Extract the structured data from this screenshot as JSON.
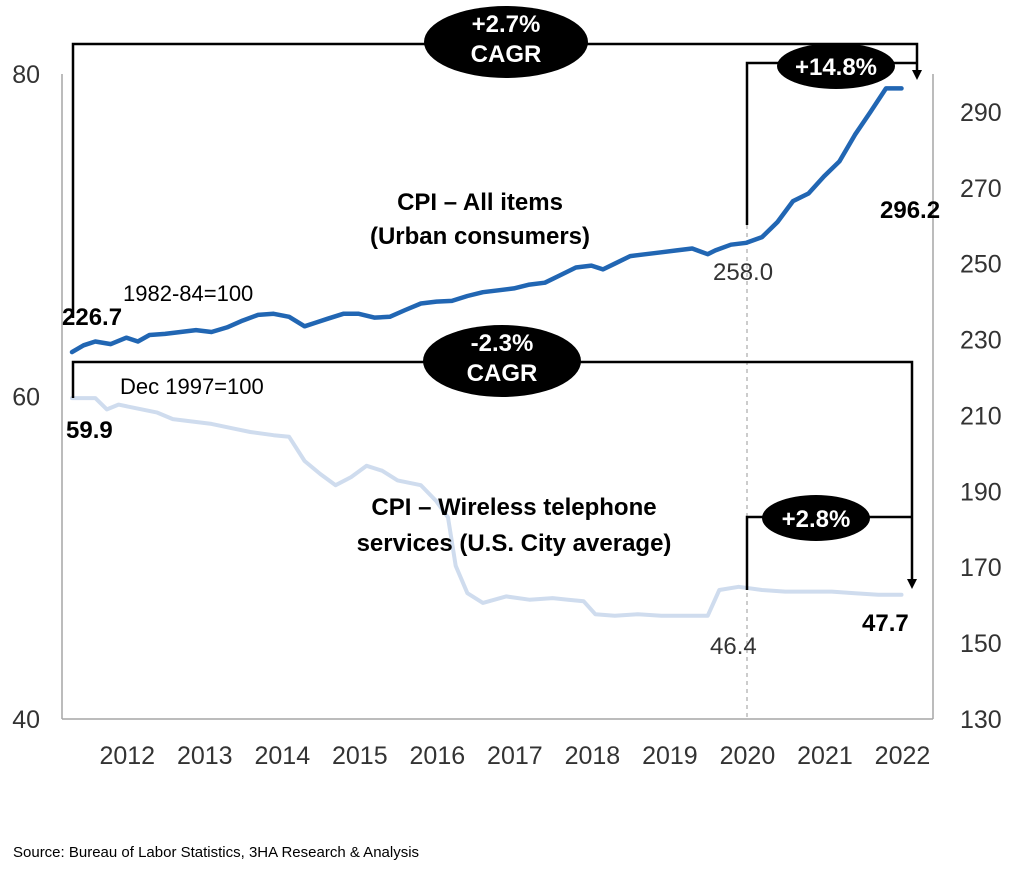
{
  "chart_data": {
    "type": "line",
    "source": "Source: Bureau of Labor Statistics, 3HA Research & Analysis",
    "x_axis": {
      "ticks": [
        "2012",
        "2013",
        "2014",
        "2015",
        "2016",
        "2017",
        "2018",
        "2019",
        "2020",
        "2021",
        "2022"
      ],
      "range": [
        2011.7,
        2022.6
      ]
    },
    "y_left": {
      "ticks": [
        "40",
        "60",
        "80"
      ],
      "range": [
        40,
        80
      ]
    },
    "y_right": {
      "ticks": [
        "130",
        "150",
        "170",
        "190",
        "210",
        "230",
        "250",
        "270",
        "290"
      ],
      "range": [
        130,
        300
      ]
    },
    "series": [
      {
        "name": "CPI – All items (Urban consumers)",
        "label_line1": "CPI – All items",
        "label_line2": "(Urban consumers)",
        "base": "1982-84=100",
        "axis": "right",
        "color": "#2166b3",
        "start_label": "226.7",
        "mid_label": "258.0",
        "end_label": "296.2",
        "points": [
          [
            2011.7,
            226.7
          ],
          [
            2011.85,
            228.5
          ],
          [
            2012.0,
            229.5
          ],
          [
            2012.2,
            228.8
          ],
          [
            2012.4,
            230.5
          ],
          [
            2012.55,
            229.5
          ],
          [
            2012.7,
            231.2
          ],
          [
            2012.9,
            231.5
          ],
          [
            2013.1,
            232.0
          ],
          [
            2013.3,
            232.5
          ],
          [
            2013.5,
            232.0
          ],
          [
            2013.7,
            233.2
          ],
          [
            2013.9,
            235.0
          ],
          [
            2014.1,
            236.5
          ],
          [
            2014.3,
            236.8
          ],
          [
            2014.5,
            236.0
          ],
          [
            2014.7,
            233.5
          ],
          [
            2014.85,
            234.5
          ],
          [
            2015.0,
            235.5
          ],
          [
            2015.2,
            236.8
          ],
          [
            2015.4,
            236.8
          ],
          [
            2015.6,
            235.8
          ],
          [
            2015.8,
            236.0
          ],
          [
            2016.0,
            237.8
          ],
          [
            2016.2,
            239.5
          ],
          [
            2016.4,
            240.0
          ],
          [
            2016.6,
            240.2
          ],
          [
            2016.8,
            241.5
          ],
          [
            2017.0,
            242.5
          ],
          [
            2017.2,
            243.0
          ],
          [
            2017.4,
            243.5
          ],
          [
            2017.6,
            244.5
          ],
          [
            2017.8,
            245.0
          ],
          [
            2018.0,
            247.0
          ],
          [
            2018.2,
            249.0
          ],
          [
            2018.4,
            249.5
          ],
          [
            2018.55,
            248.5
          ],
          [
            2018.7,
            250.0
          ],
          [
            2018.9,
            252.0
          ],
          [
            2019.1,
            252.5
          ],
          [
            2019.3,
            253.0
          ],
          [
            2019.5,
            253.5
          ],
          [
            2019.7,
            254.0
          ],
          [
            2019.9,
            252.5
          ],
          [
            2020.0,
            253.5
          ],
          [
            2020.2,
            255.0
          ],
          [
            2020.4,
            255.5
          ],
          [
            2020.6,
            257.0
          ],
          [
            2020.8,
            261.0
          ],
          [
            2021.0,
            266.5
          ],
          [
            2021.2,
            268.5
          ],
          [
            2021.4,
            273.0
          ],
          [
            2021.6,
            277.0
          ],
          [
            2021.8,
            284.0
          ],
          [
            2022.0,
            290.0
          ],
          [
            2022.2,
            296.2
          ],
          [
            2022.4,
            296.2
          ]
        ]
      },
      {
        "name": "CPI – Wireless telephone services (U.S. City average)",
        "label_line1": "CPI – Wireless telephone",
        "label_line2": "services (U.S. City average)",
        "base": "Dec 1997=100",
        "axis": "left",
        "color": "#cfdcee",
        "start_label": "59.9",
        "mid_label": "46.4",
        "end_label": "47.7",
        "points": [
          [
            2011.7,
            59.9
          ],
          [
            2012.0,
            59.9
          ],
          [
            2012.15,
            59.2
          ],
          [
            2012.3,
            59.5
          ],
          [
            2012.5,
            59.3
          ],
          [
            2012.8,
            59.0
          ],
          [
            2013.0,
            58.6
          ],
          [
            2013.5,
            58.3
          ],
          [
            2013.8,
            58.0
          ],
          [
            2014.0,
            57.8
          ],
          [
            2014.3,
            57.6
          ],
          [
            2014.5,
            57.5
          ],
          [
            2014.7,
            56.0
          ],
          [
            2014.9,
            55.2
          ],
          [
            2015.1,
            54.5
          ],
          [
            2015.3,
            55.0
          ],
          [
            2015.5,
            55.7
          ],
          [
            2015.7,
            55.4
          ],
          [
            2015.9,
            54.8
          ],
          [
            2016.2,
            54.5
          ],
          [
            2016.4,
            53.5
          ],
          [
            2016.55,
            52.5
          ],
          [
            2016.65,
            49.5
          ],
          [
            2016.8,
            47.8
          ],
          [
            2017.0,
            47.2
          ],
          [
            2017.3,
            47.6
          ],
          [
            2017.6,
            47.4
          ],
          [
            2017.9,
            47.5
          ],
          [
            2018.1,
            47.4
          ],
          [
            2018.3,
            47.3
          ],
          [
            2018.45,
            46.5
          ],
          [
            2018.7,
            46.4
          ],
          [
            2019.0,
            46.5
          ],
          [
            2019.3,
            46.4
          ],
          [
            2019.6,
            46.4
          ],
          [
            2019.9,
            46.4
          ],
          [
            2020.05,
            48.0
          ],
          [
            2020.3,
            48.2
          ],
          [
            2020.6,
            48.0
          ],
          [
            2020.9,
            47.9
          ],
          [
            2021.2,
            47.9
          ],
          [
            2021.5,
            47.9
          ],
          [
            2021.8,
            47.8
          ],
          [
            2022.1,
            47.7
          ],
          [
            2022.4,
            47.7
          ]
        ]
      }
    ],
    "annotations": [
      {
        "id": "cagr-all",
        "line1": "+2.7%",
        "line2": "CAGR"
      },
      {
        "id": "pct-all-2020",
        "line1": "+14.8%"
      },
      {
        "id": "cagr-wireless",
        "line1": "-2.3%",
        "line2": "CAGR"
      },
      {
        "id": "pct-wireless-2020",
        "line1": "+2.8%"
      }
    ]
  }
}
